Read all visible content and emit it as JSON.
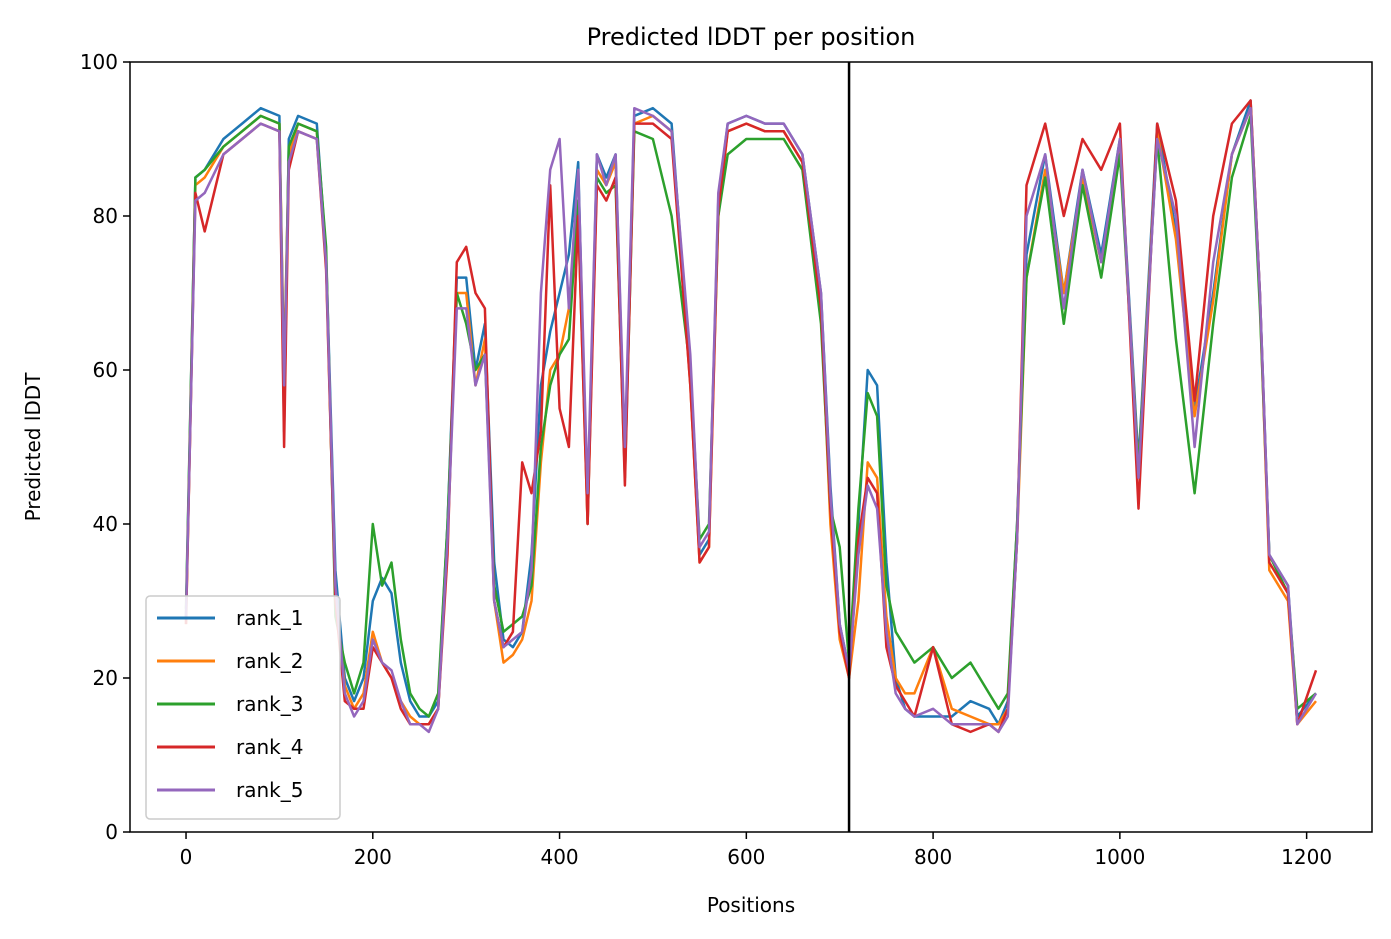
{
  "chart_data": {
    "type": "line",
    "title": "Predicted lDDT per position",
    "xlabel": "Positions",
    "ylabel": "Predicted lDDT",
    "xlim": [
      -60,
      1270
    ],
    "ylim": [
      0,
      100
    ],
    "xticks": [
      0,
      200,
      400,
      600,
      800,
      1000,
      1200
    ],
    "yticks": [
      0,
      20,
      40,
      60,
      80,
      100
    ],
    "xtick_labels": [
      "0",
      "200",
      "400",
      "600",
      "800",
      "1000",
      "1200"
    ],
    "ytick_labels": [
      "0",
      "20",
      "40",
      "60",
      "80",
      "100"
    ],
    "grid": false,
    "legend_position": "lower-left",
    "vline": {
      "x": 710,
      "color": "#000000"
    },
    "series": [
      {
        "name": "rank_1",
        "color": "#1f77b4",
        "x": [
          0,
          10,
          20,
          40,
          60,
          80,
          100,
          105,
          110,
          120,
          140,
          150,
          160,
          170,
          180,
          190,
          200,
          210,
          220,
          230,
          240,
          250,
          260,
          270,
          280,
          290,
          300,
          310,
          320,
          330,
          340,
          350,
          360,
          370,
          380,
          390,
          400,
          410,
          420,
          430,
          440,
          450,
          460,
          470,
          480,
          500,
          520,
          540,
          550,
          560,
          570,
          580,
          600,
          620,
          640,
          660,
          680,
          690,
          700,
          710,
          720,
          730,
          740,
          750,
          760,
          770,
          780,
          800,
          820,
          840,
          860,
          870,
          880,
          890,
          900,
          920,
          940,
          960,
          980,
          1000,
          1020,
          1040,
          1060,
          1080,
          1100,
          1120,
          1140,
          1150,
          1160,
          1180,
          1190,
          1210
        ],
        "y": [
          28,
          85,
          86,
          90,
          92,
          94,
          93,
          52,
          90,
          93,
          92,
          75,
          34,
          20,
          17,
          20,
          30,
          33,
          31,
          22,
          17,
          15,
          15,
          17,
          40,
          72,
          72,
          60,
          66,
          35,
          25,
          24,
          26,
          36,
          58,
          65,
          70,
          75,
          87,
          40,
          88,
          85,
          88,
          48,
          93,
          94,
          92,
          60,
          36,
          38,
          82,
          92,
          93,
          92,
          92,
          88,
          70,
          45,
          27,
          21,
          40,
          60,
          58,
          35,
          20,
          16,
          15,
          15,
          15,
          17,
          16,
          14,
          17,
          40,
          75,
          88,
          70,
          86,
          75,
          90,
          48,
          92,
          78,
          55,
          70,
          88,
          95,
          70,
          36,
          32,
          15,
          18
        ]
      },
      {
        "name": "rank_2",
        "color": "#ff7f0e",
        "x": [
          0,
          10,
          20,
          40,
          60,
          80,
          100,
          105,
          110,
          120,
          140,
          150,
          160,
          170,
          180,
          190,
          200,
          210,
          220,
          230,
          240,
          250,
          260,
          270,
          280,
          290,
          300,
          310,
          320,
          330,
          340,
          350,
          360,
          370,
          380,
          390,
          400,
          410,
          420,
          430,
          440,
          450,
          460,
          470,
          480,
          500,
          520,
          540,
          550,
          560,
          570,
          580,
          600,
          620,
          640,
          660,
          680,
          690,
          700,
          710,
          720,
          730,
          740,
          750,
          760,
          770,
          780,
          800,
          820,
          840,
          860,
          870,
          880,
          890,
          900,
          920,
          940,
          960,
          980,
          1000,
          1020,
          1040,
          1060,
          1080,
          1100,
          1120,
          1140,
          1150,
          1160,
          1180,
          1190,
          1210
        ],
        "y": [
          27,
          84,
          85,
          89,
          91,
          93,
          92,
          60,
          88,
          92,
          91,
          74,
          30,
          19,
          16,
          18,
          26,
          22,
          20,
          17,
          15,
          14,
          14,
          16,
          38,
          70,
          70,
          58,
          64,
          30,
          22,
          23,
          25,
          30,
          48,
          60,
          62,
          68,
          80,
          40,
          86,
          84,
          87,
          47,
          92,
          93,
          91,
          58,
          35,
          37,
          80,
          91,
          92,
          91,
          91,
          87,
          68,
          40,
          25,
          20,
          30,
          48,
          46,
          28,
          20,
          18,
          18,
          24,
          16,
          15,
          14,
          14,
          16,
          38,
          72,
          86,
          70,
          85,
          74,
          89,
          47,
          91,
          77,
          54,
          69,
          88,
          94,
          69,
          34,
          30,
          14,
          17
        ]
      },
      {
        "name": "rank_3",
        "color": "#2ca02c",
        "x": [
          0,
          10,
          20,
          40,
          60,
          80,
          100,
          105,
          110,
          120,
          140,
          150,
          160,
          170,
          180,
          190,
          200,
          210,
          220,
          230,
          240,
          250,
          260,
          270,
          280,
          290,
          300,
          310,
          320,
          330,
          340,
          350,
          360,
          370,
          380,
          390,
          400,
          410,
          420,
          430,
          440,
          450,
          460,
          470,
          480,
          500,
          520,
          540,
          550,
          560,
          570,
          580,
          600,
          620,
          640,
          660,
          680,
          690,
          700,
          710,
          720,
          730,
          740,
          750,
          760,
          770,
          780,
          800,
          820,
          840,
          860,
          870,
          880,
          890,
          900,
          920,
          940,
          960,
          980,
          1000,
          1020,
          1040,
          1060,
          1080,
          1100,
          1120,
          1140,
          1150,
          1160,
          1180,
          1190,
          1210
        ],
        "y": [
          29,
          85,
          86,
          89,
          91,
          93,
          92,
          58,
          89,
          92,
          91,
          76,
          28,
          22,
          18,
          22,
          40,
          32,
          35,
          25,
          18,
          16,
          15,
          18,
          40,
          70,
          66,
          60,
          62,
          32,
          26,
          27,
          28,
          32,
          50,
          58,
          62,
          64,
          82,
          42,
          85,
          83,
          84,
          46,
          91,
          90,
          80,
          60,
          38,
          40,
          80,
          88,
          90,
          90,
          90,
          86,
          66,
          42,
          37,
          22,
          42,
          57,
          54,
          32,
          26,
          24,
          22,
          24,
          20,
          22,
          18,
          16,
          18,
          40,
          72,
          85,
          66,
          84,
          72,
          88,
          47,
          90,
          64,
          44,
          66,
          85,
          93,
          68,
          36,
          31,
          16,
          18
        ]
      },
      {
        "name": "rank_4",
        "color": "#d62728",
        "x": [
          0,
          10,
          20,
          40,
          60,
          80,
          100,
          105,
          110,
          120,
          140,
          150,
          160,
          170,
          180,
          190,
          200,
          210,
          220,
          230,
          240,
          250,
          260,
          270,
          280,
          290,
          300,
          310,
          320,
          330,
          340,
          350,
          360,
          370,
          380,
          390,
          400,
          410,
          420,
          430,
          440,
          450,
          460,
          470,
          480,
          500,
          520,
          540,
          550,
          560,
          570,
          580,
          600,
          620,
          640,
          660,
          680,
          690,
          700,
          710,
          720,
          730,
          740,
          750,
          760,
          770,
          780,
          800,
          820,
          840,
          860,
          870,
          880,
          890,
          900,
          920,
          940,
          960,
          980,
          1000,
          1020,
          1040,
          1060,
          1080,
          1100,
          1120,
          1140,
          1150,
          1160,
          1180,
          1190,
          1210
        ],
        "y": [
          27,
          83,
          78,
          88,
          90,
          92,
          91,
          50,
          86,
          91,
          90,
          73,
          30,
          17,
          16,
          16,
          24,
          22,
          20,
          16,
          14,
          14,
          14,
          16,
          36,
          74,
          76,
          70,
          68,
          30,
          24,
          26,
          48,
          44,
          52,
          84,
          55,
          50,
          80,
          40,
          84,
          82,
          85,
          45,
          92,
          92,
          90,
          58,
          35,
          37,
          81,
          91,
          92,
          91,
          91,
          87,
          68,
          42,
          26,
          20,
          38,
          46,
          44,
          24,
          19,
          17,
          15,
          24,
          14,
          13,
          14,
          13,
          16,
          38,
          84,
          92,
          80,
          90,
          86,
          92,
          42,
          92,
          82,
          56,
          80,
          92,
          95,
          70,
          35,
          31,
          14,
          21
        ]
      },
      {
        "name": "rank_5",
        "color": "#9467bd",
        "x": [
          0,
          10,
          20,
          40,
          60,
          80,
          100,
          105,
          110,
          120,
          140,
          150,
          160,
          170,
          180,
          190,
          200,
          210,
          220,
          230,
          240,
          250,
          260,
          270,
          280,
          290,
          300,
          310,
          320,
          330,
          340,
          350,
          360,
          370,
          380,
          390,
          400,
          410,
          420,
          430,
          440,
          450,
          460,
          470,
          480,
          500,
          520,
          540,
          550,
          560,
          570,
          580,
          600,
          620,
          640,
          660,
          680,
          690,
          700,
          710,
          720,
          730,
          740,
          750,
          760,
          770,
          780,
          800,
          820,
          840,
          860,
          870,
          880,
          890,
          900,
          920,
          940,
          960,
          980,
          1000,
          1020,
          1040,
          1060,
          1080,
          1100,
          1120,
          1140,
          1150,
          1160,
          1180,
          1190,
          1210
        ],
        "y": [
          28,
          82,
          83,
          88,
          90,
          92,
          91,
          58,
          87,
          91,
          90,
          74,
          32,
          18,
          15,
          17,
          25,
          22,
          21,
          17,
          14,
          14,
          13,
          16,
          38,
          68,
          68,
          58,
          62,
          30,
          24,
          25,
          26,
          34,
          70,
          86,
          90,
          68,
          86,
          44,
          88,
          84,
          88,
          50,
          94,
          93,
          91,
          62,
          37,
          39,
          83,
          92,
          93,
          92,
          92,
          88,
          70,
          44,
          27,
          21,
          36,
          45,
          42,
          26,
          18,
          16,
          15,
          16,
          14,
          14,
          14,
          13,
          15,
          38,
          80,
          88,
          68,
          86,
          74,
          90,
          46,
          90,
          80,
          50,
          74,
          88,
          94,
          70,
          36,
          32,
          14,
          18
        ]
      }
    ]
  }
}
